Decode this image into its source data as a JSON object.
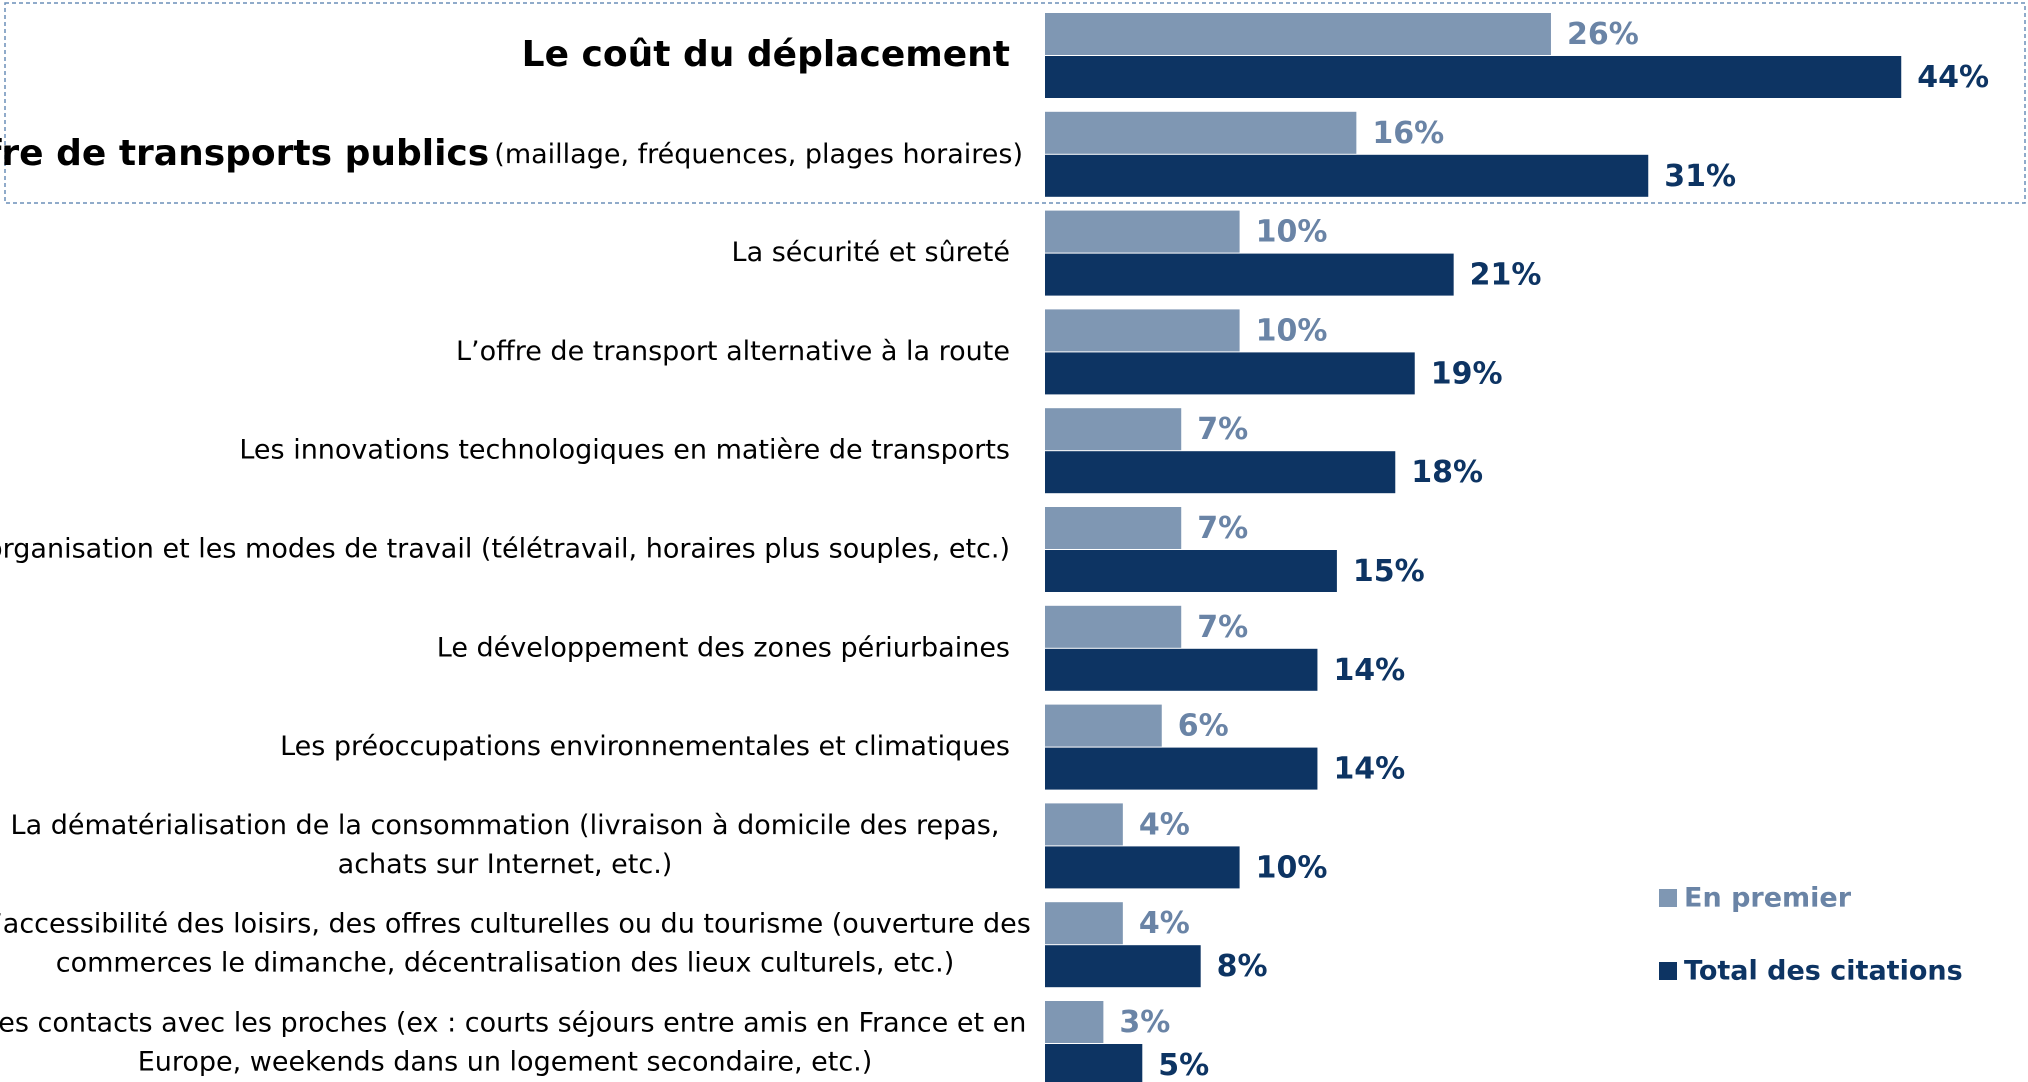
{
  "chart_data": {
    "type": "bar",
    "orientation": "horizontal",
    "categories": [
      {
        "bold": "Le coût du déplacement"
      },
      {
        "bold": "L’offre de transports publics",
        "text": "(maillage, fréquences, plages horaires)"
      },
      "La sécurité et sûreté",
      "L’offre de transport alternative à la route",
      "Les innovations technologiques en matière de transports",
      "L’organisation et les modes de travail (télétravail, horaires plus souples, etc.)",
      "Le développement des zones périurbaines",
      "Les préoccupations environnementales et climatiques",
      [
        "La dématérialisation de la consommation (livraison à domicile des repas,",
        "achats sur Internet, etc.)"
      ],
      [
        "L’accessibilité des loisirs, des offres culturelles ou du tourisme (ouverture des",
        "commerces le dimanche, décentralisation des lieux culturels, etc.)"
      ],
      [
        "Les contacts avec les proches (ex : courts séjours entre amis en France et en",
        "Europe, weekends dans un logement secondaire, etc.)"
      ]
    ],
    "series": [
      {
        "name": "En premier",
        "color": "#7f97b3",
        "label_color": "#6a84a6",
        "values": [
          26,
          16,
          10,
          10,
          7,
          7,
          7,
          6,
          4,
          4,
          3
        ],
        "value_labels": [
          "26%",
          "16%",
          "10%",
          "10%",
          "7%",
          "7%",
          "7%",
          "6%",
          "4%",
          "4%",
          "3%"
        ]
      },
      {
        "name": "Total des citations",
        "color": "#0d3463",
        "label_color": "#0d3463",
        "values": [
          44,
          31,
          21,
          19,
          18,
          15,
          14,
          14,
          10,
          8,
          5
        ],
        "value_labels": [
          "44%",
          "31%",
          "21%",
          "19%",
          "18%",
          "15%",
          "14%",
          "14%",
          "10%",
          "8%",
          "5%"
        ]
      }
    ]
  }
}
